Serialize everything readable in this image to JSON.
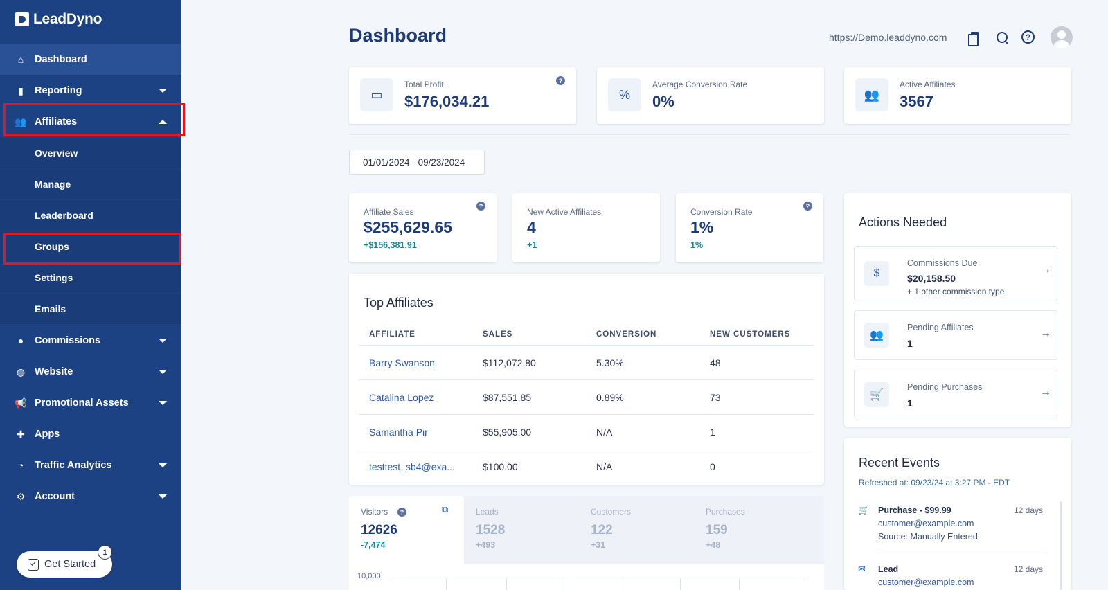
{
  "app": {
    "name": "LeadDyno"
  },
  "sidebar": {
    "items": [
      {
        "label": "Dashboard",
        "icon": "home-icon"
      },
      {
        "label": "Reporting",
        "icon": "bar-chart-icon"
      },
      {
        "label": "Affiliates",
        "icon": "users-icon"
      },
      {
        "label": "Commissions",
        "icon": "dollar-icon"
      },
      {
        "label": "Website",
        "icon": "globe-icon"
      },
      {
        "label": "Promotional Assets",
        "icon": "megaphone-icon"
      },
      {
        "label": "Apps",
        "icon": "puzzle-icon"
      },
      {
        "label": "Traffic Analytics",
        "icon": "pie-chart-icon"
      },
      {
        "label": "Account",
        "icon": "gear-icon"
      }
    ],
    "affiliates_sub": [
      "Overview",
      "Manage",
      "Leaderboard",
      "Groups",
      "Settings",
      "Emails"
    ],
    "get_started": {
      "label": "Get Started",
      "badge": "1"
    }
  },
  "header": {
    "title": "Dashboard",
    "url": "https://Demo.leaddyno.com"
  },
  "kpis": [
    {
      "label": "Total Profit",
      "value": "$176,034.21",
      "icon": "wallet-icon"
    },
    {
      "label": "Average Conversion Rate",
      "value": "0%",
      "icon": "percent-badge-icon"
    },
    {
      "label": "Active Affiliates",
      "value": "3567",
      "icon": "users-icon"
    }
  ],
  "date_range": "01/01/2024 - 09/23/2024",
  "stats": [
    {
      "label": "Affiliate Sales",
      "value": "$255,629.65",
      "delta": "+$156,381.91"
    },
    {
      "label": "New Active Affiliates",
      "value": "4",
      "delta": "+1"
    },
    {
      "label": "Conversion Rate",
      "value": "1%",
      "delta": "1%"
    }
  ],
  "top_affiliates": {
    "title": "Top Affiliates",
    "columns": [
      "AFFILIATE",
      "SALES",
      "CONVERSION",
      "NEW CUSTOMERS"
    ],
    "rows": [
      {
        "affiliate": "Barry Swanson",
        "sales": "$112,072.80",
        "conversion": "5.30%",
        "new_customers": "48"
      },
      {
        "affiliate": "Catalina Lopez",
        "sales": "$87,551.85",
        "conversion": "0.89%",
        "new_customers": "73"
      },
      {
        "affiliate": "Samantha Pir",
        "sales": "$55,905.00",
        "conversion": "N/A",
        "new_customers": "1"
      },
      {
        "affiliate": "testtest_sb4@exa...",
        "sales": "$100.00",
        "conversion": "N/A",
        "new_customers": "0"
      }
    ]
  },
  "traffic_tabs": [
    {
      "label": "Visitors",
      "value": "12626",
      "delta": "-7,474"
    },
    {
      "label": "Leads",
      "value": "1528",
      "delta": "+493"
    },
    {
      "label": "Customers",
      "value": "122",
      "delta": "+31"
    },
    {
      "label": "Purchases",
      "value": "159",
      "delta": "+48"
    }
  ],
  "chart": {
    "y_top_label": "10,000"
  },
  "actions_needed": {
    "title": "Actions Needed",
    "items": [
      {
        "label": "Commissions Due",
        "value": "$20,158.50",
        "sub": "+ 1 other commission type",
        "icon": "dollar-circle-icon"
      },
      {
        "label": "Pending Affiliates",
        "value": "1",
        "icon": "users-icon"
      },
      {
        "label": "Pending Purchases",
        "value": "1",
        "icon": "cart-icon"
      }
    ]
  },
  "recent_events": {
    "title": "Recent Events",
    "refreshed": "Refreshed at: 09/23/24 at 3:27 PM - EDT",
    "items": [
      {
        "title": "Purchase - $99.99",
        "time": "12 days",
        "email": "customer@example.com",
        "source": "Source: Manually Entered",
        "icon": "cart-icon"
      },
      {
        "title": "Lead",
        "time": "12 days",
        "email": "customer@example.com",
        "icon": "mail-icon"
      }
    ]
  }
}
